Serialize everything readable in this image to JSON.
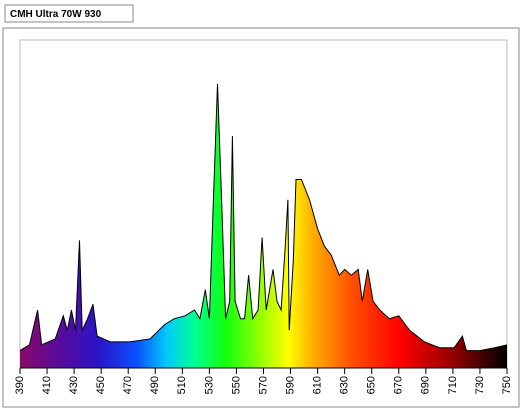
{
  "chart_data": {
    "type": "area",
    "title": "CMH Ultra 70W 930",
    "x": [
      390,
      397,
      403,
      406,
      416,
      422,
      425,
      428,
      431,
      434,
      436,
      440,
      444,
      447,
      457,
      471,
      486,
      497,
      504,
      512,
      519,
      523,
      527,
      530,
      533,
      536,
      539,
      542,
      545,
      547,
      549,
      553,
      556,
      559,
      562,
      566,
      569,
      572,
      577,
      580,
      583,
      586,
      588,
      589,
      592,
      594,
      598,
      604,
      610,
      615,
      620,
      626,
      630,
      635,
      640,
      643,
      647,
      651,
      656,
      663,
      670,
      678,
      689,
      700,
      711,
      717,
      720,
      730,
      741,
      750
    ],
    "values": [
      6,
      8,
      20,
      8,
      10,
      18,
      13,
      20,
      13,
      44,
      13,
      17,
      22,
      11,
      9,
      9,
      10,
      15,
      17,
      18,
      20,
      17,
      27,
      17,
      58,
      98,
      58,
      17,
      23,
      80,
      23,
      17,
      17,
      32,
      17,
      20,
      45,
      20,
      34,
      23,
      20,
      41,
      58,
      13,
      37,
      65,
      65,
      58,
      48,
      42,
      39,
      32,
      34,
      32,
      34,
      23,
      34,
      23,
      20,
      17,
      18,
      13,
      9,
      7,
      7,
      11,
      6,
      6,
      7,
      8
    ],
    "xlim": [
      390,
      750
    ],
    "ylim": [
      0,
      100
    ],
    "xticks": [
      390,
      410,
      430,
      450,
      470,
      490,
      510,
      530,
      550,
      570,
      590,
      610,
      630,
      650,
      670,
      690,
      710,
      730,
      750
    ]
  }
}
